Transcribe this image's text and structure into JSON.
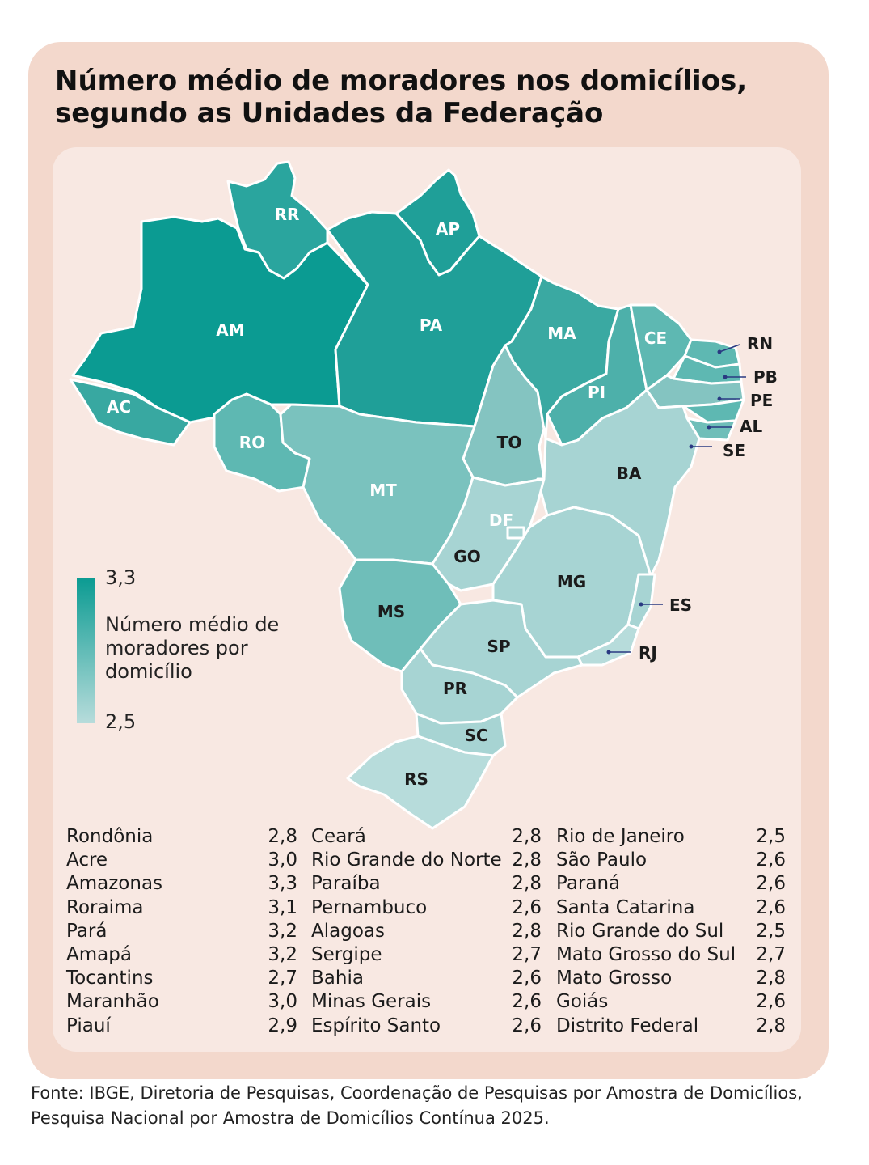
{
  "title": "Número médio de moradores nos domicílios, segundo as Unidades da Federação",
  "legend": {
    "max": "3,3",
    "min": "2,5",
    "title": "Número médio de moradores por domicílio",
    "color_max": "#0b9b92",
    "color_min": "#b7dcdb"
  },
  "map_labels": {
    "RR": "RR",
    "AP": "AP",
    "AM": "AM",
    "PA": "PA",
    "MA": "MA",
    "CE": "CE",
    "RN": "RN",
    "PB": "PB",
    "PE": "PE",
    "AL": "AL",
    "SE": "SE",
    "PI": "PI",
    "AC": "AC",
    "RO": "RO",
    "TO": "TO",
    "BA": "BA",
    "MT": "MT",
    "DF": "DF",
    "GO": "GO",
    "MG": "MG",
    "ES": "ES",
    "MS": "MS",
    "SP": "SP",
    "RJ": "RJ",
    "PR": "PR",
    "SC": "SC",
    "RS": "RS"
  },
  "table": {
    "col1": [
      {
        "name": "Rondônia",
        "value": "2,8"
      },
      {
        "name": "Acre",
        "value": "3,0"
      },
      {
        "name": "Amazonas",
        "value": "3,3"
      },
      {
        "name": "Roraima",
        "value": "3,1"
      },
      {
        "name": "Pará",
        "value": "3,2"
      },
      {
        "name": "Amapá",
        "value": "3,2"
      },
      {
        "name": "Tocantins",
        "value": "2,7"
      },
      {
        "name": "Maranhão",
        "value": "3,0"
      },
      {
        "name": "Piauí",
        "value": "2,9"
      }
    ],
    "col2": [
      {
        "name": "Ceará",
        "value": "2,8"
      },
      {
        "name": "Rio Grande do Norte",
        "value": "2,8"
      },
      {
        "name": "Paraíba",
        "value": "2,8"
      },
      {
        "name": "Pernambuco",
        "value": "2,6"
      },
      {
        "name": "Alagoas",
        "value": "2,8"
      },
      {
        "name": "Sergipe",
        "value": "2,7"
      },
      {
        "name": "Bahia",
        "value": "2,6"
      },
      {
        "name": "Minas Gerais",
        "value": "2,6"
      },
      {
        "name": "Espírito Santo",
        "value": "2,6"
      }
    ],
    "col3": [
      {
        "name": "Rio de Janeiro",
        "value": "2,5"
      },
      {
        "name": "São Paulo",
        "value": "2,6"
      },
      {
        "name": "Paraná",
        "value": "2,6"
      },
      {
        "name": "Santa Catarina",
        "value": "2,6"
      },
      {
        "name": "Rio Grande do Sul",
        "value": "2,5"
      },
      {
        "name": "Mato Grosso do Sul",
        "value": "2,7"
      },
      {
        "name": "Mato Grosso",
        "value": "2,8"
      },
      {
        "name": "Goiás",
        "value": "2,6"
      },
      {
        "name": "Distrito Federal",
        "value": "2,8"
      }
    ]
  },
  "source": "Fonte: IBGE, Diretoria de Pesquisas, Coordenação de Pesquisas por Amostra de Domicílios, Pesquisa Nacional por Amostra de Domicílios Contínua 2025."
}
